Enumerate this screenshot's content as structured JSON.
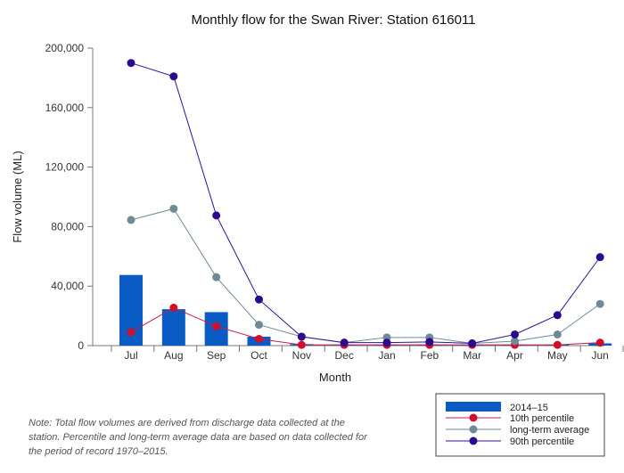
{
  "chart_data": {
    "type": "bar+line",
    "title": "Monthly flow for the Swan River: Station 616011",
    "xlabel": "Month",
    "ylabel": "Flow volume (ML)",
    "ylim": [
      0,
      200000
    ],
    "yticks": [
      0,
      40000,
      80000,
      120000,
      160000,
      200000
    ],
    "ytick_labels": [
      "0",
      "40,000",
      "80,000",
      "120,000",
      "160,000",
      "200,000"
    ],
    "categories": [
      "Jul",
      "Aug",
      "Sep",
      "Oct",
      "Nov",
      "Dec",
      "Jan",
      "Feb",
      "Mar",
      "Apr",
      "May",
      "Jun"
    ],
    "bars": {
      "name": "2014–15",
      "color": "#0a5bc4",
      "values": [
        47500,
        24500,
        22500,
        6000,
        1000,
        500,
        500,
        300,
        200,
        500,
        600,
        1500
      ]
    },
    "series": [
      {
        "name": "10th percentile",
        "line_color": "#c0204a",
        "marker_color": "#d0102a",
        "values": [
          9000,
          25500,
          13000,
          4500,
          500,
          500,
          500,
          500,
          500,
          500,
          500,
          2000
        ]
      },
      {
        "name": "long-term average",
        "line_color": "#6e8a96",
        "marker_color": "#6e8a96",
        "values": [
          84500,
          92000,
          46000,
          14000,
          6000,
          2000,
          5500,
          5500,
          1500,
          3000,
          7500,
          28000
        ]
      },
      {
        "name": "90th percentile",
        "line_color": "#2c139c",
        "marker_color": "#2c0a8f",
        "values": [
          190000,
          181000,
          87500,
          31000,
          6000,
          2000,
          2000,
          2500,
          1500,
          7500,
          20500,
          59500
        ]
      }
    ],
    "legend_position": "bottom-right"
  },
  "note": "Note: Total flow volumes are derived from discharge data collected at the station. Percentile and long-term average data are based on data collected for the period of record 1970–2015."
}
